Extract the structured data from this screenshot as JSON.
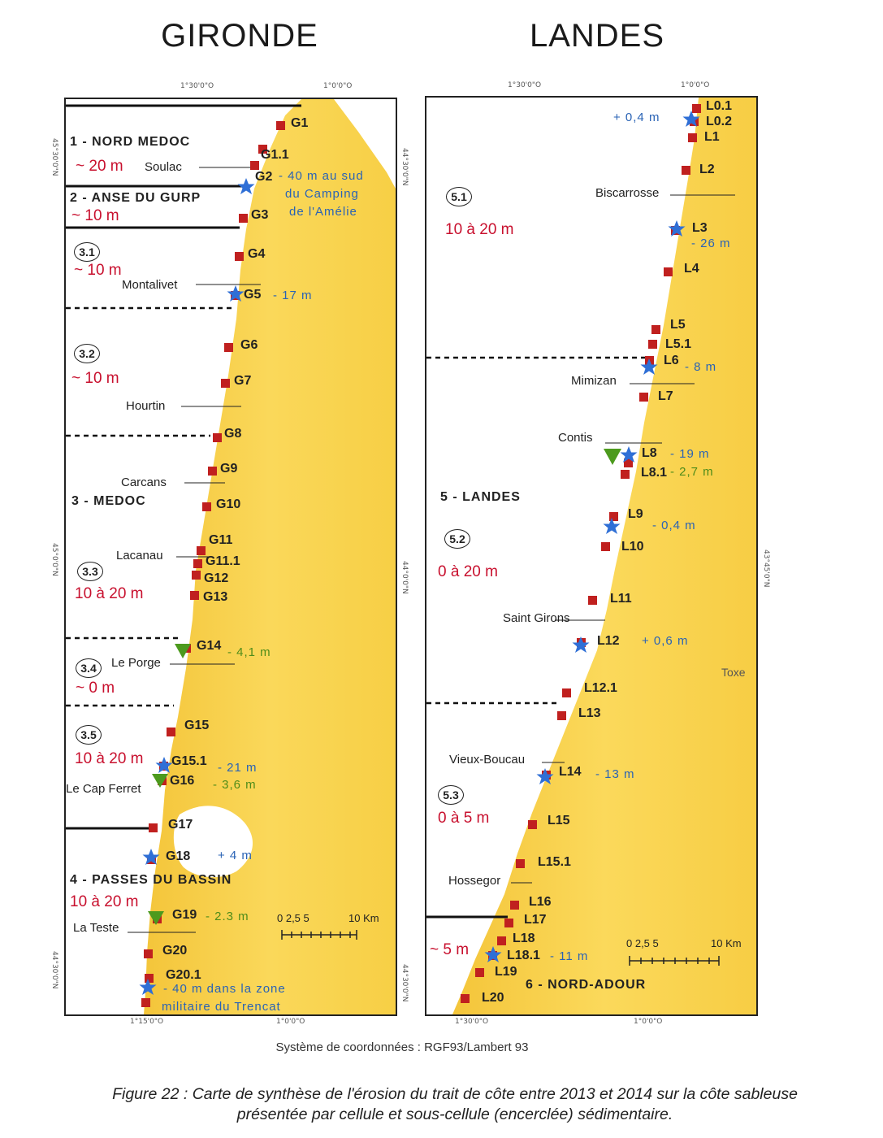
{
  "titles": {
    "left": "GIRONDE",
    "right": "LANDES"
  },
  "graticule": {
    "left_top": [
      "1°30'0\"O",
      "1°0'0\"O"
    ],
    "left_bottom": [
      "1°15'0\"O",
      "1°0'0\"O"
    ],
    "left_side": [
      "45°30'0\"N",
      "45°0'0\"N",
      "44°30'0\"N"
    ],
    "right_top": [
      "1°30'0\"O",
      "1°0'0\"O"
    ],
    "right_bottom": [
      "1°30'0\"O",
      "1°0'0\"O"
    ],
    "right_side": [
      "44°30'0\"N",
      "44°0'0\"N",
      "43°45'0\"N"
    ]
  },
  "gironde": {
    "points": [
      "G1",
      "G1.1",
      "G2",
      "G3",
      "G4",
      "G5",
      "G6",
      "G7",
      "G8",
      "G9",
      "G10",
      "G11",
      "G11.1",
      "G12",
      "G13",
      "G14",
      "G15",
      "G15.1",
      "G16",
      "G17",
      "G18",
      "G19",
      "G20",
      "G20.1"
    ],
    "cells": {
      "nord_medoc": "1 - NORD MEDOC",
      "anse_gurp": "2 - ANSE DU GURP",
      "medoc": "3 - MEDOC",
      "passes": "4 - PASSES DU BASSIN"
    },
    "sub_cells": [
      "3.1",
      "3.2",
      "3.3",
      "3.4",
      "3.5"
    ],
    "rates": {
      "nord_medoc": "~ 20 m",
      "anse_gurp": "~ 10 m",
      "c31": "~ 10 m",
      "c32": "~ 10 m",
      "c33": "10 à 20 m",
      "c34": "~ 0 m",
      "c35": "10 à 20 m",
      "passes": "10 à 20 m"
    },
    "places": {
      "soulac": "Soulac",
      "montalivet": "Montalivet",
      "hourtin": "Hourtin",
      "carcans": "Carcans",
      "lacanau": "Lacanau",
      "le_porge": "Le Porge",
      "cap_ferret": "Le Cap Ferret",
      "la_teste": "La Teste"
    },
    "notes": {
      "g2_line1": "- 40 m au sud",
      "g2_line2": "du Camping",
      "g2_line3": "de l'Amélie",
      "g5": "- 17 m",
      "g14": "- 4,1 m",
      "g15_1": "- 21 m",
      "g16": "- 3,6 m",
      "g18": "+ 4 m",
      "g19": "- 2.3 m",
      "g20_line1": "- 40 m dans la zone",
      "g20_line2": "militaire du Trencat"
    },
    "scale": {
      "ticks": "0  2,5  5",
      "end": "10 Km"
    }
  },
  "landes": {
    "points": [
      "L0.1",
      "L0.2",
      "L1",
      "L2",
      "L3",
      "L4",
      "L5",
      "L5.1",
      "L6",
      "L7",
      "L8",
      "L8.1",
      "L9",
      "L10",
      "L11",
      "L12",
      "L12.1",
      "L13",
      "L14",
      "L15",
      "L15.1",
      "L16",
      "L17",
      "L18",
      "L18.1",
      "L19",
      "L20"
    ],
    "cells": {
      "landes": "5 - LANDES",
      "nord_adour": "6 - NORD-ADOUR"
    },
    "sub_cells": [
      "5.1",
      "5.2",
      "5.3"
    ],
    "rates": {
      "c51": "10 à 20 m",
      "c52": "0 à 20 m",
      "c53": "0 à 5 m",
      "nord_adour": "~ 5 m"
    },
    "places": {
      "biscarrosse": "Biscarrosse",
      "mimizan": "Mimizan",
      "contis": "Contis",
      "saint_girons": "Saint Girons",
      "vieux_boucau": "Vieux-Boucau",
      "hossegor": "Hossegor",
      "toxe": "Toxe"
    },
    "notes": {
      "l0": "+ 0,4 m",
      "l3": "- 26 m",
      "l6": "- 8 m",
      "l8": "- 19 m",
      "l8_1": "- 2,7 m",
      "l9": "- 0,4 m",
      "l12": "+ 0,6 m",
      "l14": "- 13 m",
      "l18_1": "- 11 m"
    },
    "scale": {
      "ticks": "0  2,5  5",
      "end": "10 Km"
    }
  },
  "legend": {
    "square": "#c0201f",
    "star": "#2f6fd6",
    "triangle": "#4c9a1d",
    "land": "#f7d24a",
    "sea": "#ffffff"
  },
  "coord_system": "Système de coordonnées : RGF93/Lambert 93",
  "caption": {
    "line1": "Figure 22 : Carte de synthèse de l'érosion du trait de côte entre 2013 et 2014 sur la côte sableuse",
    "line2": "présentée par cellule et sous-cellule (encerclée) sédimentaire."
  }
}
